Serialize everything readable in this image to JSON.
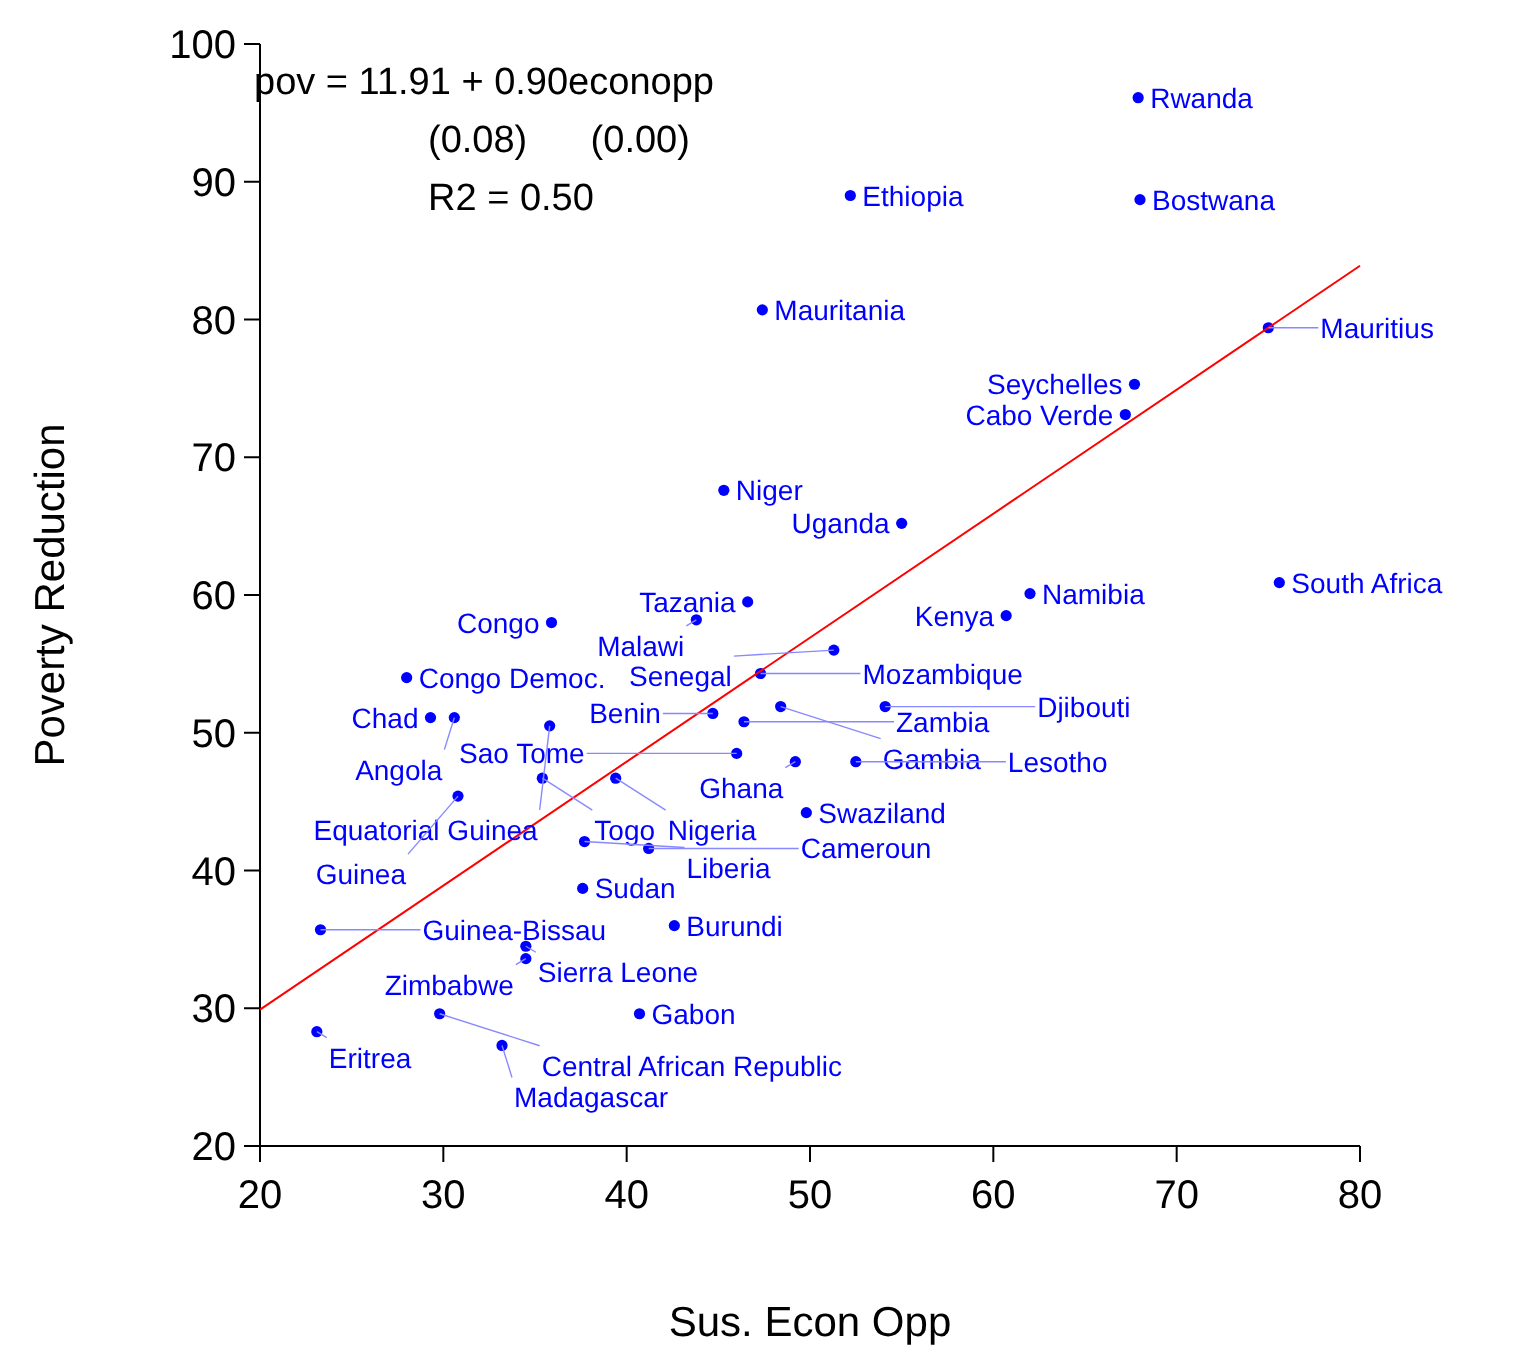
{
  "chart_data": {
    "type": "scatter",
    "xlabel": "Sus. Econ Opp",
    "ylabel": "Poverty Reduction",
    "xlim": [
      20,
      80
    ],
    "xticks": [
      20,
      30,
      40,
      50,
      60,
      70,
      80
    ],
    "ylim": [
      20,
      100
    ],
    "yticks": [
      20,
      30,
      40,
      50,
      60,
      70,
      80,
      90,
      100
    ],
    "grid": false,
    "marker": "circle",
    "series": [
      {
        "color": "#0000ff",
        "x": [
          67.9,
          52.2,
          68.0,
          47.4,
          75.0,
          67.7,
          67.2,
          45.3,
          55.0,
          62.0,
          75.6,
          60.7,
          46.6,
          35.9,
          43.8,
          28.0,
          47.3,
          51.3,
          29.3,
          30.6,
          35.8,
          44.7,
          46.4,
          48.4,
          54.1,
          46.0,
          49.2,
          52.5,
          49.8,
          35.4,
          39.4,
          30.8,
          37.7,
          41.2,
          37.6,
          23.3,
          42.6,
          34.5,
          34.5,
          29.8,
          40.7,
          23.1,
          33.2
        ],
        "values": [
          96.1,
          89.0,
          88.7,
          80.7,
          79.4,
          75.3,
          73.1,
          67.6,
          65.2,
          60.1,
          60.9,
          58.5,
          59.5,
          58.0,
          58.2,
          54.0,
          54.3,
          56.0,
          51.1,
          51.1,
          50.5,
          51.4,
          50.8,
          51.9,
          51.9,
          48.5,
          47.9,
          47.9,
          44.2,
          46.7,
          46.7,
          45.4,
          42.1,
          41.6,
          38.7,
          35.7,
          36.0,
          34.5,
          33.6,
          29.6,
          29.6,
          28.3,
          27.3
        ]
      },
      {
        "type": "line",
        "color": "#ff0000",
        "marker": "none",
        "x": [
          20,
          80
        ],
        "values": [
          29.9,
          83.9
        ]
      }
    ],
    "annotations": [
      "pov = 11.91 + 0.90econopp",
      "(0.08)      (0.00)",
      "R2 = 0.50",
      {
        "text": "Rwanda",
        "x": 67.9,
        "y": 96.1
      },
      {
        "text": "Ethiopia",
        "x": 52.2,
        "y": 89.0
      },
      {
        "text": "Bostwana",
        "x": 68.0,
        "y": 88.7
      },
      {
        "text": "Mauritania",
        "x": 47.4,
        "y": 80.7
      },
      {
        "text": "Mauritius",
        "x": 75.0,
        "y": 79.4
      },
      {
        "text": "Seychelles",
        "x": 67.7,
        "y": 75.3
      },
      {
        "text": "Cabo Verde",
        "x": 67.2,
        "y": 73.1
      },
      {
        "text": "Niger",
        "x": 45.3,
        "y": 67.6
      },
      {
        "text": "Uganda",
        "x": 55.0,
        "y": 65.2
      },
      {
        "text": "Namibia",
        "x": 62.0,
        "y": 60.1
      },
      {
        "text": "South Africa",
        "x": 75.6,
        "y": 60.9
      },
      {
        "text": "Kenya",
        "x": 60.7,
        "y": 58.5
      },
      {
        "text": "Tazania",
        "x": 46.6,
        "y": 59.5
      },
      {
        "text": "Congo",
        "x": 35.9,
        "y": 58.0
      },
      {
        "text": "Malawi",
        "x": 43.8,
        "y": 58.2
      },
      {
        "text": "Congo Democ.",
        "x": 28.0,
        "y": 54.0
      },
      {
        "text": "Mozambique",
        "x": 47.3,
        "y": 54.3
      },
      {
        "text": "Senegal",
        "x": 51.3,
        "y": 56.0
      },
      {
        "text": "Chad",
        "x": 29.3,
        "y": 51.1
      },
      {
        "text": "Angola",
        "x": 30.6,
        "y": 51.1
      },
      {
        "text": "Equatorial Guinea",
        "x": 35.8,
        "y": 50.5
      },
      {
        "text": "Benin",
        "x": 44.7,
        "y": 51.4
      },
      {
        "text": "Zambia",
        "x": 46.4,
        "y": 50.8
      },
      {
        "text": "Gambia",
        "x": 48.4,
        "y": 51.9
      },
      {
        "text": "Djibouti",
        "x": 54.1,
        "y": 51.9
      },
      {
        "text": "Sao Tome",
        "x": 46.0,
        "y": 48.5
      },
      {
        "text": "Ghana",
        "x": 49.2,
        "y": 47.9
      },
      {
        "text": "Lesotho",
        "x": 52.5,
        "y": 47.9
      },
      {
        "text": "Swaziland",
        "x": 49.8,
        "y": 44.2
      },
      {
        "text": "Togo",
        "x": 35.4,
        "y": 46.7
      },
      {
        "text": "Nigeria",
        "x": 39.4,
        "y": 46.7
      },
      {
        "text": "Guinea",
        "x": 30.8,
        "y": 45.4
      },
      {
        "text": "Liberia",
        "x": 37.7,
        "y": 42.1
      },
      {
        "text": "Cameroun",
        "x": 41.2,
        "y": 41.6
      },
      {
        "text": "Sudan",
        "x": 37.6,
        "y": 38.7
      },
      {
        "text": "Guinea-Bissau",
        "x": 23.3,
        "y": 35.7
      },
      {
        "text": "Burundi",
        "x": 42.6,
        "y": 36.0
      },
      {
        "text": "Sierra Leone",
        "x": 34.5,
        "y": 34.5
      },
      {
        "text": "Zimbabwe",
        "x": 34.5,
        "y": 33.6
      },
      {
        "text": "Central African Republic",
        "x": 29.8,
        "y": 29.6
      },
      {
        "text": "Gabon",
        "x": 40.7,
        "y": 29.6
      },
      {
        "text": "Eritrea",
        "x": 23.1,
        "y": 28.3
      },
      {
        "text": "Madagascar",
        "x": 33.2,
        "y": 27.3
      }
    ]
  }
}
